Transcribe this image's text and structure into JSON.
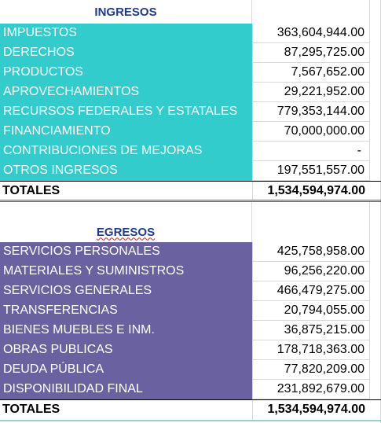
{
  "ingresos": {
    "title": "INGRESOS",
    "rows": [
      {
        "label": "IMPUESTOS",
        "value": "363,604,944.00"
      },
      {
        "label": "DERECHOS",
        "value": "87,295,725.00"
      },
      {
        "label": "PRODUCTOS",
        "value": "7,567,652.00"
      },
      {
        "label": "APROVECHAMIENTOS",
        "value": "29,221,952.00"
      },
      {
        "label": "RECURSOS FEDERALES Y ESTATALES",
        "value": "779,353,144.00"
      },
      {
        "label": "FINANCIAMIENTO",
        "value": "70,000,000.00"
      },
      {
        "label": "CONTRIBUCIONES DE MEJORAS",
        "value": "-"
      },
      {
        "label": "OTROS INGRESOS",
        "value": "197,551,557.00"
      }
    ],
    "total_label": "TOTALES",
    "total_value": "1,534,594,974.00"
  },
  "egresos": {
    "title": "EGRESOS",
    "rows": [
      {
        "label": "SERVICIOS PERSONALES",
        "value": "425,758,958.00"
      },
      {
        "label": "MATERIALES Y SUMINISTROS",
        "value": "96,256,220.00"
      },
      {
        "label": "SERVICIOS GENERALES",
        "value": "466,479,275.00"
      },
      {
        "label": "TRANSFERENCIAS",
        "value": "20,794,055.00"
      },
      {
        "label": "BIENES MUEBLES E INM.",
        "value": "36,875,215.00"
      },
      {
        "label": "OBRAS PUBLICAS",
        "value": "178,718,363.00"
      },
      {
        "label": "DEUDA PÚBLICA",
        "value": "77,820,209.00"
      },
      {
        "label": "DISPONIBILIDAD FINAL",
        "value": "231,892,679.00"
      }
    ],
    "total_label": "TOTALES",
    "total_value": "1,534,594,974.00"
  },
  "colors": {
    "ingresos_fill": "#33cccc",
    "egresos_fill": "#6a62a0",
    "header_text": "#1f3a93"
  }
}
